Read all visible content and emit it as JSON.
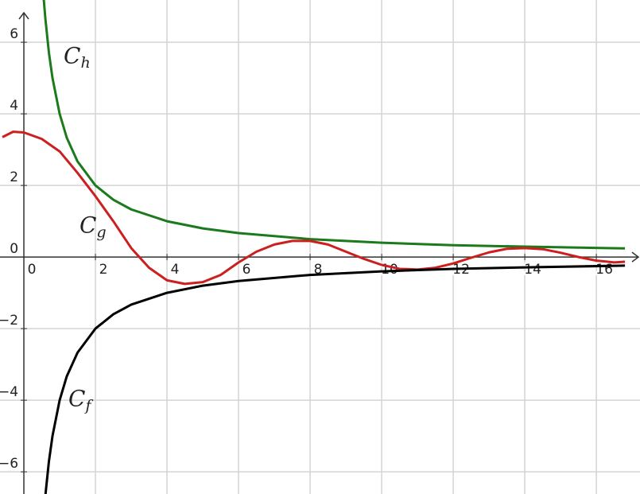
{
  "chart_data": {
    "type": "line",
    "xlim": [
      -0.667,
      17.22
    ],
    "ylim": [
      -6.62,
      7.18
    ],
    "xticks": [
      0,
      2,
      4,
      6,
      8,
      10,
      12,
      14,
      16
    ],
    "yticks": [
      {
        "value": -6,
        "label": "−6"
      },
      {
        "value": -4,
        "label": "−4"
      },
      {
        "value": -2,
        "label": "−2"
      },
      0,
      2,
      4,
      6
    ],
    "grid": true,
    "series": [
      {
        "name": "Ch",
        "color": "#1b7a1b",
        "x": [
          0.55,
          0.6,
          0.7,
          0.8,
          1,
          1.2,
          1.5,
          2,
          2.5,
          3,
          4,
          5,
          6,
          8,
          10,
          12,
          14,
          16.8
        ],
        "values": [
          7.27,
          6.67,
          5.71,
          5,
          4,
          3.33,
          2.67,
          2,
          1.6,
          1.33,
          1,
          0.8,
          0.67,
          0.5,
          0.4,
          0.33,
          0.29,
          0.24
        ]
      },
      {
        "name": "Cg",
        "color": "#cc1f1f",
        "x": [
          -0.6,
          -0.3,
          0,
          0.5,
          1,
          1.5,
          2,
          2.5,
          3,
          3.5,
          4,
          4.5,
          5,
          5.5,
          6,
          6.5,
          7,
          7.5,
          8,
          8.5,
          9,
          9.5,
          10,
          10.5,
          11,
          11.5,
          12,
          12.5,
          13,
          13.5,
          14,
          14.5,
          15,
          15.5,
          16,
          16.5,
          16.8
        ],
        "values": [
          3.35,
          3.5,
          3.48,
          3.3,
          2.95,
          2.35,
          1.7,
          1.0,
          0.25,
          -0.3,
          -0.65,
          -0.75,
          -0.7,
          -0.5,
          -0.15,
          0.15,
          0.35,
          0.45,
          0.45,
          0.35,
          0.15,
          -0.05,
          -0.22,
          -0.33,
          -0.35,
          -0.3,
          -0.18,
          -0.02,
          0.13,
          0.23,
          0.25,
          0.22,
          0.12,
          0.0,
          -0.1,
          -0.15,
          -0.13
        ]
      },
      {
        "name": "Cf",
        "color": "#000000",
        "x": [
          0.55,
          0.6,
          0.7,
          0.8,
          1,
          1.2,
          1.5,
          2,
          2.5,
          3,
          4,
          5,
          6,
          8,
          10,
          12,
          14,
          16.8
        ],
        "values": [
          -7.27,
          -6.67,
          -5.71,
          -5,
          -4,
          -3.33,
          -2.67,
          -2,
          -1.6,
          -1.33,
          -1,
          -0.8,
          -0.67,
          -0.5,
          -0.4,
          -0.33,
          -0.29,
          -0.24
        ]
      }
    ]
  }
}
